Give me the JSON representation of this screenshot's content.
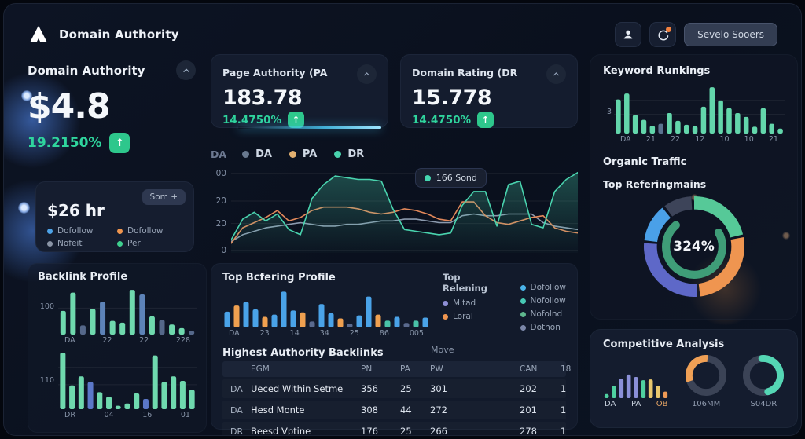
{
  "header": {
    "title": "Domain Authority",
    "cta_label": "Sevelo Sooers"
  },
  "icons": {
    "up": "↑"
  },
  "hero": {
    "title": "Domain Authority",
    "value": "$4.8",
    "change": "19.2150%"
  },
  "cards": {
    "page_authority": {
      "title": "Page Authority (PA",
      "value": "183.78",
      "change": "14.4750%"
    },
    "domain_rating": {
      "title": "Domain Rating (DR",
      "value": "15.778",
      "change": "14.4750%"
    }
  },
  "rate_card": {
    "title": "$26 hr",
    "sort_label": "Som +",
    "legend": [
      {
        "label": "Dofollow",
        "color": "#4da3e8"
      },
      {
        "label": "Dofollow",
        "color": "#ef954e"
      },
      {
        "label": "Nofeit",
        "color": "#8a94a6"
      },
      {
        "label": "Per",
        "color": "#3ecf8e"
      }
    ]
  },
  "backlink": {
    "title": "Backlink Profile"
  },
  "referring_legend": {
    "title": "Top Relening",
    "left": [
      {
        "label": "Mitad",
        "color": "#8e8fd6"
      },
      {
        "label": "Loral",
        "color": "#ef9550"
      }
    ],
    "right": [
      {
        "label": "Dofollow",
        "color": "#4ab3e8"
      },
      {
        "label": "Nofollow",
        "color": "#47c9b4"
      },
      {
        "label": "Nofolnd",
        "color": "#5fb88e"
      },
      {
        "label": "Dotnon",
        "color": "#7b87a8"
      }
    ]
  },
  "table": {
    "title": "Highest Authority Backlinks",
    "move_label": "Move",
    "columns": [
      "EGM",
      "PN",
      "PA",
      "PW",
      "CAN",
      "18"
    ],
    "rows": [
      [
        "DA",
        "Ueced Within Setme",
        "356",
        "25",
        "301",
        "202",
        "1"
      ],
      [
        "DA",
        "Hesd Monte",
        "308",
        "44",
        "272",
        "201",
        "1"
      ],
      [
        "DR",
        "Beesd Vptine",
        "176",
        "25",
        "266",
        "278",
        "1"
      ]
    ]
  },
  "right_panel": {
    "keyword_title": "Keyword Runkings",
    "organic_title": "Organic Traffic",
    "referring_title": "Top Referingmains"
  },
  "competitive": {
    "title": "Competitive Analysis",
    "donut1_label": "106MM",
    "donut2_label": "S04DR"
  },
  "chart_data": {
    "trend": {
      "type": "line",
      "legend_prefix": "DA",
      "legend": [
        {
          "label": "DA",
          "color": "#69798f"
        },
        {
          "label": "PA",
          "color": "#e2b070"
        },
        {
          "label": "DR",
          "color": "#49d3ae"
        }
      ],
      "tooltip": "166 Sond",
      "ylim": [
        0,
        46
      ],
      "yticks": [
        {
          "t": "00",
          "f": 0.08
        },
        {
          "t": "20",
          "f": 0.4
        },
        {
          "t": "20",
          "f": 0.66
        },
        {
          "t": "0",
          "f": 0.97
        }
      ],
      "series": [
        {
          "name": "DA",
          "color": "#8b99ad",
          "values": [
            5,
            9,
            11,
            13,
            14,
            15,
            16,
            15,
            14,
            14,
            15,
            15,
            16,
            17,
            17,
            18,
            18,
            17,
            16,
            16,
            20,
            21,
            20,
            20,
            21,
            21,
            21,
            16,
            14,
            13,
            12
          ]
        },
        {
          "name": "PA",
          "color": "#e2885a",
          "values": [
            4,
            13,
            16,
            19,
            23,
            17,
            19,
            23,
            25,
            25,
            25,
            24,
            22,
            21,
            22,
            24,
            23,
            21,
            18,
            17,
            28,
            28,
            20,
            16,
            15,
            17,
            19,
            20,
            13,
            11,
            10
          ]
        },
        {
          "name": "DR",
          "color": "#49d3ae",
          "fill": true,
          "values": [
            6,
            18,
            22,
            17,
            21,
            12,
            9,
            30,
            38,
            43,
            42,
            41,
            41,
            40,
            24,
            12,
            11,
            10,
            9,
            10,
            26,
            34,
            34,
            14,
            38,
            40,
            15,
            13,
            34,
            41,
            45
          ]
        }
      ]
    },
    "keyword": {
      "type": "bar",
      "title": "Keyword Runkings",
      "ytick": [
        {
          "t": "3",
          "f": 0.58
        }
      ],
      "grid": [
        0.34,
        0.62
      ],
      "labels": [
        "DA",
        "21",
        "22",
        "12",
        "10",
        "10",
        "21"
      ],
      "values": [
        70,
        82,
        38,
        28,
        16,
        20,
        42,
        26,
        18,
        15,
        55,
        95,
        68,
        52,
        42,
        34,
        14,
        52,
        20,
        10
      ],
      "colors": [
        "#63d6ab",
        "#63d6ab",
        "#63d6ab",
        "#63d6ab",
        "#63d6ab",
        "#5a7390",
        "#63d6ab",
        "#63d6ab",
        "#63d6ab",
        "#63d6ab",
        "#63d6ab",
        "#63d6ab",
        "#63d6ab",
        "#63d6ab",
        "#63d6ab",
        "#63d6ab",
        "#63d6ab",
        "#63d6ab",
        "#63d6ab",
        "#63d6ab"
      ]
    },
    "backlink1": {
      "type": "bar",
      "ytick": [
        {
          "t": "100",
          "f": 0.42
        }
      ],
      "grid": [
        0.44
      ],
      "labels": [
        "DA",
        "22",
        "22",
        "228"
      ],
      "values": [
        52,
        92,
        20,
        56,
        72,
        30,
        26,
        98,
        88,
        40,
        32,
        22,
        14,
        8
      ],
      "colors": [
        "#6fd9ae",
        "#6fd9ae",
        "#55688a",
        "#6fd9ae",
        "#5d83b8",
        "#6fd9ae",
        "#6fd9ae",
        "#6fd9ae",
        "#5d83b8",
        "#6fd9ae",
        "#55688a",
        "#6fd9ae",
        "#6fd9ae",
        "#55688a"
      ]
    },
    "backlink2": {
      "type": "bar",
      "ytick": [
        {
          "t": "110",
          "f": 0.52
        }
      ],
      "grid": [
        0.28,
        0.58
      ],
      "labels": [
        "DR",
        "04",
        "16",
        "01"
      ],
      "values": [
        100,
        42,
        58,
        48,
        30,
        22,
        6,
        10,
        28,
        18,
        95,
        48,
        58,
        50,
        34
      ],
      "colors": [
        "#6fd9ae",
        "#6fd9ae",
        "#6fd9ae",
        "#5b77c8",
        "#6fd9ae",
        "#6fd9ae",
        "#6fd9ae",
        "#6fd9ae",
        "#6fd9ae",
        "#5b77c8",
        "#6fd9ae",
        "#6fd9ae",
        "#6fd9ae",
        "#6fd9ae",
        "#6fd9ae"
      ]
    },
    "referring": {
      "type": "bar",
      "title": "Top Bcfering Profile",
      "labels": [
        "DA",
        "23",
        "14",
        "34",
        "25",
        "86",
        "005"
      ],
      "values": [
        42,
        58,
        68,
        48,
        28,
        34,
        95,
        45,
        40,
        16,
        62,
        38,
        24,
        10,
        32,
        82,
        34,
        18,
        28,
        12,
        18,
        26
      ],
      "colors": [
        "#4aa3e8",
        "#efa050",
        "#4aa3e8",
        "#4aa3e8",
        "#efa050",
        "#4aa3e8",
        "#4aa3e8",
        "#4aa3e8",
        "#efa050",
        "#5a6a8e",
        "#4aa3e8",
        "#4aa3e8",
        "#efa050",
        "#5a6a8e",
        "#4aa3e8",
        "#4aa3e8",
        "#efa050",
        "#49c2a8",
        "#4aa3e8",
        "#5a6a8e",
        "#49c2a8",
        "#4aa3e8"
      ]
    },
    "organic_donut": {
      "type": "donut",
      "center": "324%",
      "thickness": 13,
      "gap": 2.5,
      "segments": [
        {
          "color": "#56c998",
          "value": 22
        },
        {
          "color": "#ef9550",
          "value": 27
        },
        {
          "color": "#5e68c8",
          "value": 28
        },
        {
          "color": "#4aa0e8",
          "value": 13
        },
        {
          "color": "#3d4459",
          "value": 10
        }
      ],
      "inner": {
        "color": "#3f9d78",
        "value": 72,
        "start": 60,
        "thickness": 8
      }
    },
    "mini_bars": {
      "type": "bar",
      "values": [
        10,
        30,
        48,
        58,
        52,
        44,
        46,
        30,
        16
      ],
      "colors": [
        "#4fd0a0",
        "#4fd0a0",
        "#8b90d8",
        "#8b90d8",
        "#8b90d8",
        "#4fd0a0",
        "#e9c86d",
        "#e9c86d",
        "#ef9a55"
      ],
      "labels": [
        {
          "label": "DA",
          "color": "#c3ccd9"
        },
        {
          "label": "PA",
          "color": "#c3ccd9"
        },
        {
          "label": "OB",
          "color": "#e2a264"
        }
      ]
    },
    "donut1": {
      "type": "donut",
      "thickness": 17,
      "track": "#3b4356",
      "start": 250,
      "segments": [
        {
          "color": "#f0a055",
          "value": 32
        }
      ]
    },
    "donut2": {
      "type": "donut",
      "thickness": 17,
      "track": "#3b4356",
      "start": 355,
      "cap": "round",
      "segments": [
        {
          "color": "#54d6b4",
          "value": 47
        }
      ]
    }
  }
}
